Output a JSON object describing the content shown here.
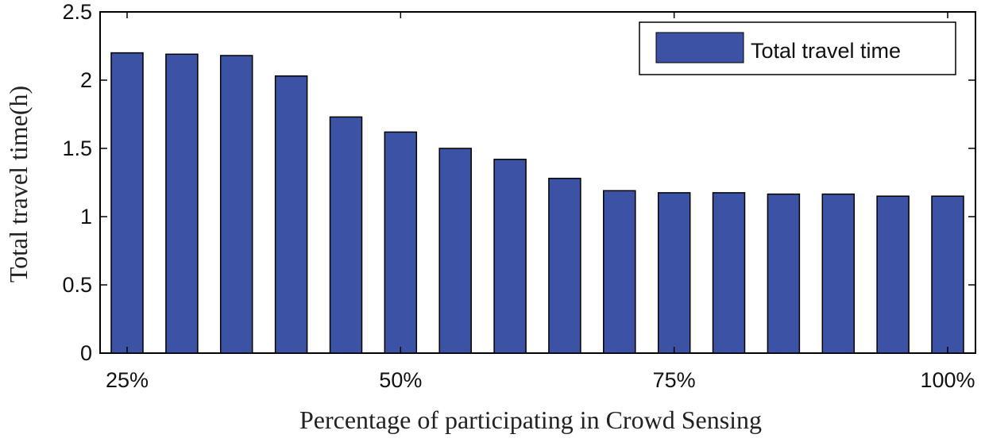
{
  "chart_data": {
    "type": "bar",
    "title": "",
    "xlabel": "Percentage of participating in Crowd Sensing",
    "ylabel": "Total travel time(h)",
    "x_tick_labels": [
      "25%",
      "50%",
      "75%",
      "100%"
    ],
    "y_tick_labels": [
      "0",
      "0.5",
      "1",
      "1.5",
      "2",
      "2.5"
    ],
    "ylim": [
      0,
      2.5
    ],
    "legend_position": "top-right",
    "grid": false,
    "colors": {
      "bar": "#3c52a5",
      "axis": "#000000"
    },
    "series": [
      {
        "name": "Total travel time",
        "values": [
          2.2,
          2.19,
          2.18,
          2.03,
          1.73,
          1.62,
          1.5,
          1.42,
          1.28,
          1.19,
          1.175,
          1.175,
          1.165,
          1.165,
          1.15,
          1.15
        ]
      }
    ]
  }
}
